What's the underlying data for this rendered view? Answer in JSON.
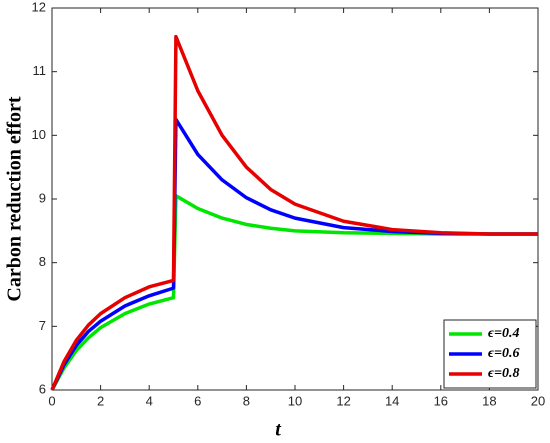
{
  "chart_data": {
    "type": "line",
    "xlabel": "t",
    "ylabel": "Carbon reduction effort",
    "x": [
      0,
      0.5,
      1,
      1.5,
      2,
      3,
      4,
      5,
      5.1,
      6,
      7,
      8,
      9,
      10,
      12,
      14,
      16,
      18,
      20
    ],
    "series": [
      {
        "name": "ϵ=0.4",
        "color": "#00e600",
        "values": [
          6,
          6.35,
          6.62,
          6.82,
          6.98,
          7.2,
          7.35,
          7.45,
          9.05,
          8.85,
          8.7,
          8.6,
          8.54,
          8.5,
          8.47,
          8.46,
          8.45,
          8.45,
          8.45
        ]
      },
      {
        "name": "ϵ=0.6",
        "color": "#0000ff",
        "values": [
          6,
          6.4,
          6.7,
          6.92,
          7.08,
          7.32,
          7.48,
          7.6,
          10.25,
          9.7,
          9.3,
          9.02,
          8.83,
          8.7,
          8.55,
          8.49,
          8.46,
          8.45,
          8.45
        ]
      },
      {
        "name": "ϵ=0.8",
        "color": "#e60000",
        "values": [
          6,
          6.45,
          6.78,
          7.02,
          7.2,
          7.45,
          7.62,
          7.72,
          11.55,
          10.7,
          10.0,
          9.5,
          9.15,
          8.92,
          8.65,
          8.52,
          8.47,
          8.45,
          8.45
        ]
      }
    ],
    "xlim": [
      0,
      20
    ],
    "xticks": [
      0,
      2,
      4,
      6,
      8,
      10,
      12,
      14,
      16,
      18,
      20
    ],
    "ylim": [
      6,
      12
    ],
    "yticks": [
      6,
      7,
      8,
      9,
      10,
      11,
      12
    ],
    "legend": "lower right"
  }
}
